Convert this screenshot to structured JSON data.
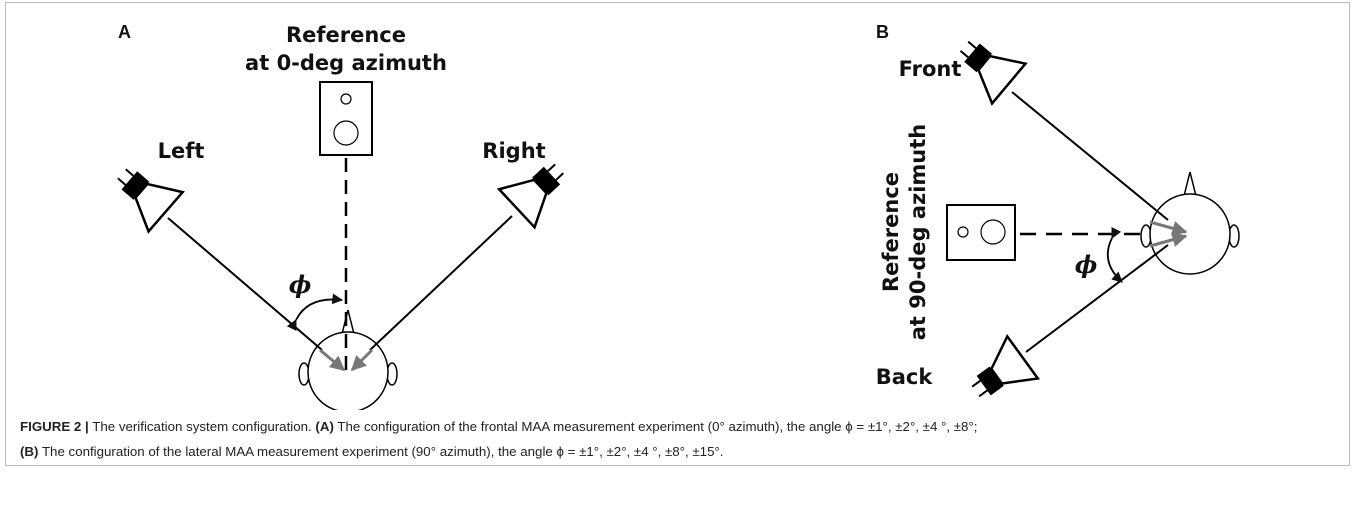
{
  "figure": {
    "panel_a": {
      "label": "A",
      "reference": [
        "Reference",
        "at 0-deg azimuth"
      ],
      "left": "Left",
      "right": "Right",
      "angle": "ϕ"
    },
    "panel_b": {
      "label": "B",
      "front": "Front",
      "reference": [
        "Reference",
        "at 90-deg azimuth"
      ],
      "back": "Back",
      "angle": "ϕ"
    }
  },
  "caption": {
    "label": "FIGURE 2 |",
    "title": "The verification system configuration.",
    "a_label": "(A)",
    "a_text": "The configuration of the frontal MAA measurement experiment (0° azimuth), the angle ϕ = ±1°, ±2°, ±4 °, ±8°;",
    "b_label": "(B)",
    "b_text": "The configuration of the lateral MAA measurement experiment (90° azimuth), the angle ϕ = ±1°, ±2°, ±4 °, ±8°, ±15°."
  }
}
